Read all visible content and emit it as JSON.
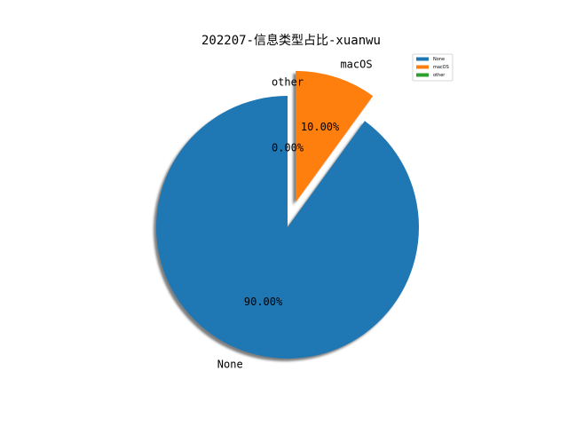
{
  "chart_data": {
    "type": "pie",
    "title": "202207-信息类型占比-xuanwu",
    "labels": [
      "None",
      "macOS",
      "other"
    ],
    "values": [
      90.0,
      10.0,
      0.0
    ],
    "percent_labels": [
      "90.00%",
      "10.00%",
      "0.00%"
    ],
    "colors": [
      "#1f77b4",
      "#ff7f0e",
      "#2ca02c"
    ],
    "explode": [
      0,
      0.2,
      0
    ],
    "start_angle_deg": 90,
    "shadow": true,
    "legend": {
      "position": "top-right",
      "entries": [
        "None",
        "macOS",
        "other"
      ]
    }
  }
}
